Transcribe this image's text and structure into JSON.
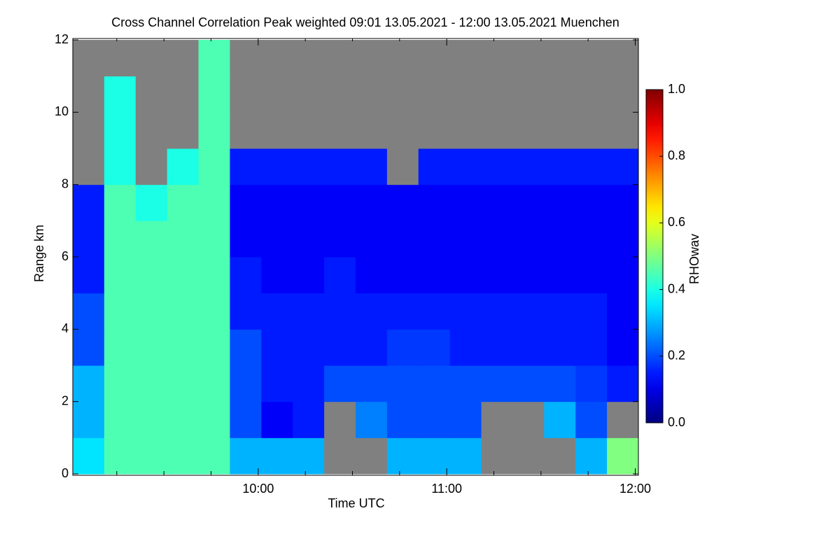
{
  "chart_data": {
    "type": "heatmap",
    "title": "Cross Channel Correlation Peak weighted   09:01 13.05.2021 - 12:00 13.05.2021 Muenchen",
    "xlabel": "Time UTC",
    "ylabel": "Range km",
    "colorbar_label": "RHOwav",
    "colormap": "jet",
    "nodata_color": "#808080",
    "x_bins": [
      541,
      551,
      561,
      571,
      581,
      591,
      601,
      611,
      621,
      631,
      641,
      651,
      661,
      671,
      681,
      691,
      701,
      711,
      721
    ],
    "y_bins": [
      0,
      1,
      2,
      3,
      4,
      5,
      6,
      7,
      8,
      9,
      10,
      11,
      12
    ],
    "z": [
      [
        0.35,
        0.45,
        0.45,
        0.45,
        0.45,
        0.3,
        0.3,
        0.3,
        null,
        null,
        0.3,
        0.3,
        0.3,
        null,
        null,
        null,
        0.3,
        0.5
      ],
      [
        0.3,
        0.45,
        0.45,
        0.45,
        0.45,
        0.2,
        0.12,
        0.15,
        null,
        0.25,
        0.2,
        0.2,
        0.2,
        null,
        null,
        0.3,
        0.2,
        null
      ],
      [
        0.3,
        0.45,
        0.45,
        0.45,
        0.45,
        0.2,
        0.15,
        0.15,
        0.2,
        0.2,
        0.2,
        0.2,
        0.2,
        0.2,
        0.2,
        0.2,
        0.18,
        0.15
      ],
      [
        0.2,
        0.45,
        0.45,
        0.45,
        0.45,
        0.2,
        0.15,
        0.15,
        0.15,
        0.15,
        0.18,
        0.18,
        0.15,
        0.15,
        0.15,
        0.15,
        0.15,
        0.12
      ],
      [
        0.2,
        0.45,
        0.45,
        0.45,
        0.45,
        0.15,
        0.15,
        0.15,
        0.15,
        0.15,
        0.15,
        0.15,
        0.15,
        0.15,
        0.15,
        0.15,
        0.15,
        0.12
      ],
      [
        0.15,
        0.45,
        0.45,
        0.45,
        0.45,
        0.15,
        0.12,
        0.12,
        0.15,
        0.12,
        0.12,
        0.12,
        0.12,
        0.12,
        0.12,
        0.12,
        0.12,
        0.12
      ],
      [
        0.15,
        0.45,
        0.45,
        0.45,
        0.45,
        0.12,
        0.12,
        0.12,
        0.12,
        0.12,
        0.12,
        0.12,
        0.12,
        0.12,
        0.12,
        0.12,
        0.12,
        0.12
      ],
      [
        0.15,
        0.45,
        0.4,
        0.45,
        0.45,
        0.12,
        0.12,
        0.12,
        0.12,
        0.12,
        0.12,
        0.12,
        0.12,
        0.12,
        0.12,
        0.12,
        0.12,
        0.12
      ],
      [
        null,
        0.4,
        null,
        0.4,
        0.45,
        0.15,
        0.15,
        0.15,
        0.15,
        0.15,
        null,
        0.15,
        0.15,
        0.15,
        0.15,
        0.15,
        0.15,
        0.15
      ],
      [
        null,
        0.4,
        null,
        null,
        0.45,
        null,
        null,
        null,
        null,
        null,
        null,
        null,
        null,
        null,
        null,
        null,
        null,
        null
      ],
      [
        null,
        0.4,
        null,
        null,
        0.45,
        null,
        null,
        null,
        null,
        null,
        null,
        null,
        null,
        null,
        null,
        null,
        null,
        null
      ],
      [
        null,
        null,
        null,
        null,
        0.45,
        null,
        null,
        null,
        null,
        null,
        null,
        null,
        null,
        null,
        null,
        null,
        null,
        null
      ]
    ],
    "xlim": [
      541,
      721
    ],
    "xticks": [
      {
        "value": 600,
        "label": "10:00"
      },
      {
        "value": 660,
        "label": "11:00"
      },
      {
        "value": 720,
        "label": "12:00"
      }
    ],
    "xminorticks": [
      555,
      570,
      585,
      615,
      630,
      645,
      675,
      690,
      705
    ],
    "ylim": [
      0,
      12
    ],
    "yticks": [
      0,
      2,
      4,
      6,
      8,
      10,
      12
    ],
    "zlim": [
      0,
      1
    ],
    "zticks": [
      {
        "value": 0,
        "label": "0.0"
      },
      {
        "value": 0.2,
        "label": "0.2"
      },
      {
        "value": 0.4,
        "label": "0.4"
      },
      {
        "value": 0.6,
        "label": "0.6"
      },
      {
        "value": 0.8,
        "label": "0.8"
      },
      {
        "value": 1,
        "label": "1.0"
      }
    ]
  }
}
